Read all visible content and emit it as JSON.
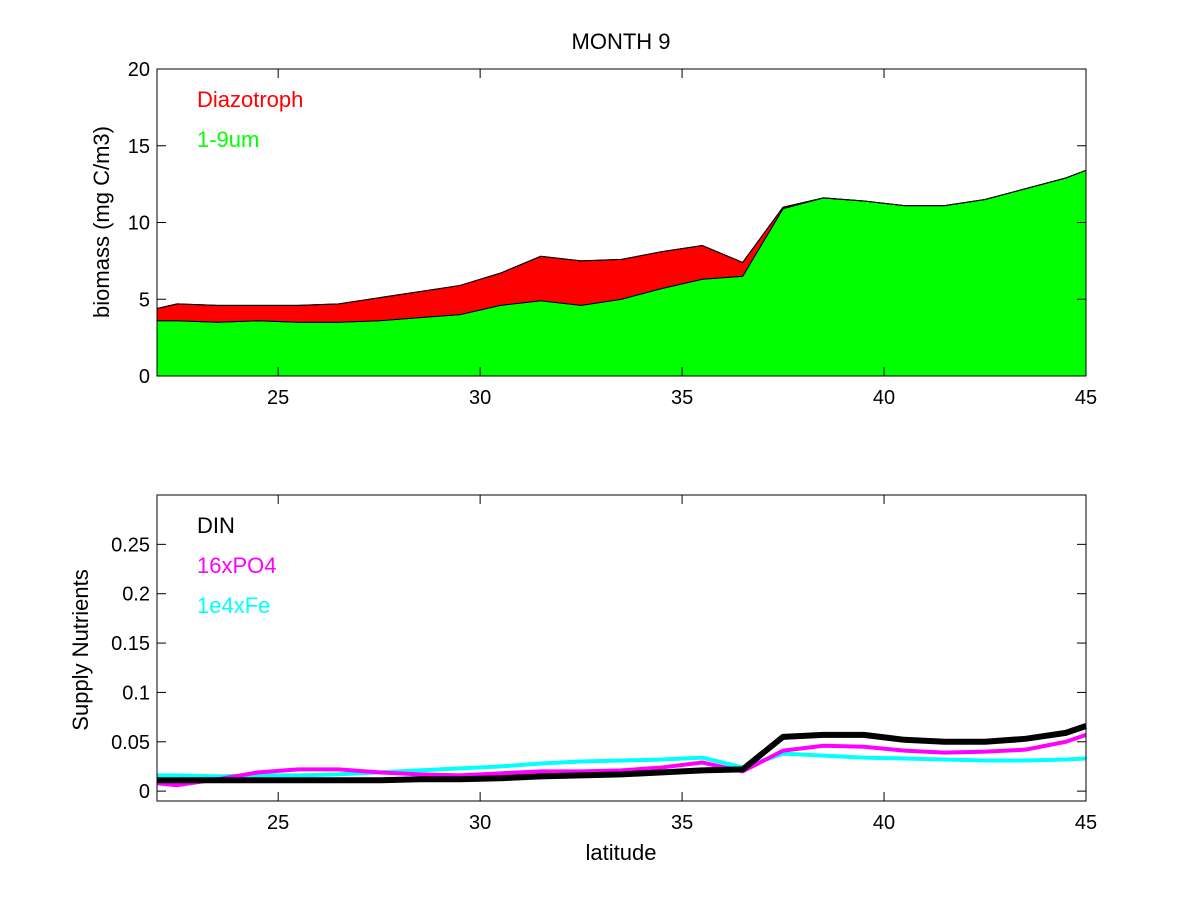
{
  "chart_data": [
    {
      "type": "area",
      "title": "MONTH 9",
      "xlabel": "",
      "ylabel": "biomass (mg C/m3)",
      "xlim": [
        22,
        45
      ],
      "ylim": [
        0,
        20
      ],
      "xticks": [
        25,
        30,
        35,
        40,
        45
      ],
      "yticks": [
        0,
        5,
        10,
        15,
        20
      ],
      "grid": false,
      "legend_location": "top-left",
      "x": [
        22,
        22.5,
        23.5,
        24.5,
        25.5,
        26.5,
        27.5,
        28.5,
        29.5,
        30.5,
        31.5,
        32.5,
        33.5,
        34.5,
        35.5,
        36.5,
        37.5,
        38.5,
        39.5,
        40.5,
        41.5,
        42.5,
        43.5,
        44.5,
        45
      ],
      "series": [
        {
          "name": "1-9um",
          "color": "#00ff00",
          "values": [
            3.6,
            3.6,
            3.5,
            3.6,
            3.5,
            3.5,
            3.6,
            3.8,
            4.0,
            4.6,
            4.9,
            4.6,
            5.0,
            5.7,
            6.3,
            6.5,
            10.9,
            11.6,
            11.4,
            11.1,
            11.1,
            11.5,
            12.2,
            12.9,
            13.4
          ]
        },
        {
          "name": "Diazotroph",
          "color": "#ff0000",
          "values": [
            0.8,
            1.1,
            1.1,
            1.0,
            1.1,
            1.2,
            1.5,
            1.7,
            1.9,
            2.1,
            2.9,
            2.9,
            2.6,
            2.4,
            2.2,
            0.9,
            0.1,
            0.0,
            0.0,
            0.0,
            0.0,
            0.0,
            0.0,
            0.0,
            0.0
          ]
        }
      ]
    },
    {
      "type": "line",
      "title": "",
      "xlabel": "latitude",
      "ylabel": "Supply Nutrients",
      "xlim": [
        22,
        45
      ],
      "ylim": [
        -0.01,
        0.3
      ],
      "xticks": [
        25,
        30,
        35,
        40,
        45
      ],
      "yticks": [
        0,
        0.05,
        0.1,
        0.15,
        0.2,
        0.25
      ],
      "ytick_labels": [
        "0",
        "0.05",
        "0.1",
        "0.15",
        "0.2",
        "0.25"
      ],
      "grid": false,
      "legend_location": "top-left",
      "x": [
        22,
        22.5,
        23.5,
        24.5,
        25.5,
        26.5,
        27.5,
        28.5,
        29.5,
        30.5,
        31.5,
        32.5,
        33.5,
        34.5,
        35.5,
        36.5,
        37.5,
        38.5,
        39.5,
        40.5,
        41.5,
        42.5,
        43.5,
        44.5,
        45
      ],
      "series": [
        {
          "name": "DIN",
          "color": "#000000",
          "width": 6,
          "values": [
            0.011,
            0.011,
            0.011,
            0.011,
            0.011,
            0.011,
            0.011,
            0.012,
            0.012,
            0.013,
            0.015,
            0.016,
            0.017,
            0.019,
            0.021,
            0.022,
            0.055,
            0.057,
            0.057,
            0.052,
            0.05,
            0.05,
            0.053,
            0.059,
            0.066
          ]
        },
        {
          "name": "16xPO4",
          "color": "#ff00ff",
          "width": 4,
          "values": [
            0.008,
            0.006,
            0.012,
            0.019,
            0.022,
            0.022,
            0.019,
            0.017,
            0.016,
            0.018,
            0.02,
            0.02,
            0.021,
            0.024,
            0.029,
            0.02,
            0.041,
            0.046,
            0.045,
            0.041,
            0.039,
            0.04,
            0.042,
            0.05,
            0.057
          ]
        },
        {
          "name": "1e4xFe",
          "color": "#00ffff",
          "width": 4,
          "values": [
            0.016,
            0.016,
            0.015,
            0.016,
            0.016,
            0.017,
            0.019,
            0.021,
            0.023,
            0.025,
            0.028,
            0.03,
            0.031,
            0.032,
            0.034,
            0.024,
            0.038,
            0.036,
            0.034,
            0.033,
            0.032,
            0.031,
            0.031,
            0.032,
            0.033
          ]
        }
      ]
    }
  ]
}
